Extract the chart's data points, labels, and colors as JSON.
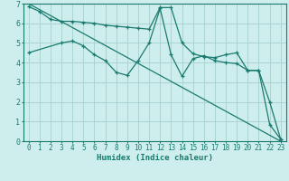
{
  "background_color": "#ceeeed",
  "grid_color": "#aad4d3",
  "line_color": "#1a7a6e",
  "xlabel": "Humidex (Indice chaleur)",
  "xlim": [
    -0.5,
    23.5
  ],
  "ylim": [
    0,
    7
  ],
  "xticks": [
    0,
    1,
    2,
    3,
    4,
    5,
    6,
    7,
    8,
    9,
    10,
    11,
    12,
    13,
    14,
    15,
    16,
    17,
    18,
    19,
    20,
    21,
    22,
    23
  ],
  "yticks": [
    0,
    1,
    2,
    3,
    4,
    5,
    6,
    7
  ],
  "line1_x": [
    0,
    23
  ],
  "line1_y": [
    7.0,
    0.0
  ],
  "line2_x": [
    0,
    1,
    2,
    3,
    4,
    5,
    6,
    7,
    8,
    9,
    10,
    11,
    12,
    13,
    14,
    15,
    16,
    17,
    18,
    19,
    20,
    21,
    22,
    23
  ],
  "line2_y": [
    6.85,
    6.6,
    6.2,
    6.1,
    6.1,
    6.05,
    6.0,
    5.9,
    5.85,
    5.8,
    5.75,
    5.7,
    6.8,
    6.8,
    5.0,
    4.45,
    4.3,
    4.25,
    4.4,
    4.5,
    3.6,
    3.6,
    2.0,
    0.1
  ],
  "line3_x": [
    0,
    3,
    4,
    5,
    6,
    7,
    8,
    9,
    10,
    11,
    12,
    13,
    14,
    15,
    16,
    17,
    18,
    19,
    20,
    21,
    22,
    23
  ],
  "line3_y": [
    4.5,
    5.0,
    5.1,
    4.85,
    4.4,
    4.1,
    3.5,
    3.35,
    4.1,
    5.0,
    6.75,
    4.4,
    3.3,
    4.2,
    4.35,
    4.1,
    4.0,
    3.95,
    3.6,
    3.6,
    0.85,
    0.1
  ],
  "tick_fontsize": 5.5,
  "label_fontsize": 6.5
}
